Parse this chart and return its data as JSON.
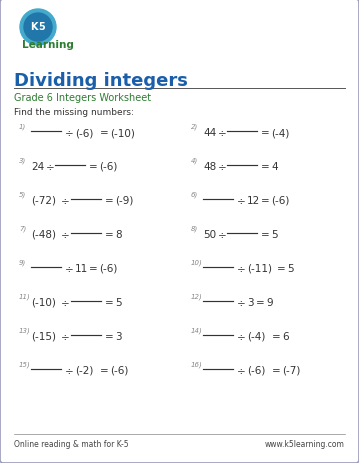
{
  "title": "Dividing integers",
  "subtitle": "Grade 6 Integers Worksheet",
  "instruction": "Find the missing numbers:",
  "title_color": "#1b5faa",
  "subtitle_color": "#2e7d32",
  "text_color": "#333333",
  "num_color": "#888888",
  "bg_color": "#ffffff",
  "border_color": "#9999bb",
  "footer_left": "Online reading & math for K-5",
  "footer_right": "www.k5learning.com",
  "problems": [
    {
      "num": "1)",
      "parts": [
        "______",
        "÷",
        "(-6)",
        "=",
        "(-10)"
      ],
      "col": 0
    },
    {
      "num": "2)",
      "parts": [
        "44",
        "÷",
        "______",
        "=",
        "(-4)"
      ],
      "col": 1
    },
    {
      "num": "3)",
      "parts": [
        "24",
        "÷",
        "______",
        "=",
        "(-6)"
      ],
      "col": 0
    },
    {
      "num": "4)",
      "parts": [
        "48",
        "÷",
        "______",
        "=",
        "4"
      ],
      "col": 1
    },
    {
      "num": "5)",
      "parts": [
        "(-72)",
        "÷",
        "______",
        "=",
        "(-9)"
      ],
      "col": 0
    },
    {
      "num": "6)",
      "parts": [
        "______",
        "÷",
        "12",
        "=",
        "(-6)"
      ],
      "col": 1
    },
    {
      "num": "7)",
      "parts": [
        "(-48)",
        "÷",
        "______",
        "=",
        "8"
      ],
      "col": 0
    },
    {
      "num": "8)",
      "parts": [
        "50",
        "÷",
        "______",
        "=",
        "5"
      ],
      "col": 1
    },
    {
      "num": "9)",
      "parts": [
        "______",
        "÷",
        "11",
        "=",
        "(-6)"
      ],
      "col": 0
    },
    {
      "num": "10)",
      "parts": [
        "______",
        "÷",
        "(-11)",
        "=",
        "5"
      ],
      "col": 1
    },
    {
      "num": "11)",
      "parts": [
        "(-10)",
        "÷",
        "______",
        "=",
        "5"
      ],
      "col": 0
    },
    {
      "num": "12)",
      "parts": [
        "______",
        "÷",
        "3",
        "=",
        "9"
      ],
      "col": 1
    },
    {
      "num": "13)",
      "parts": [
        "(-15)",
        "÷",
        "______",
        "=",
        "3"
      ],
      "col": 0
    },
    {
      "num": "14)",
      "parts": [
        "______",
        "÷",
        "(-4)",
        "=",
        "6"
      ],
      "col": 1
    },
    {
      "num": "15)",
      "parts": [
        "______",
        "÷",
        "(-2)",
        "=",
        "(-6)"
      ],
      "col": 0
    },
    {
      "num": "16)",
      "parts": [
        "______",
        "÷",
        "(-6)",
        "=",
        "(-7)"
      ],
      "col": 1
    }
  ]
}
